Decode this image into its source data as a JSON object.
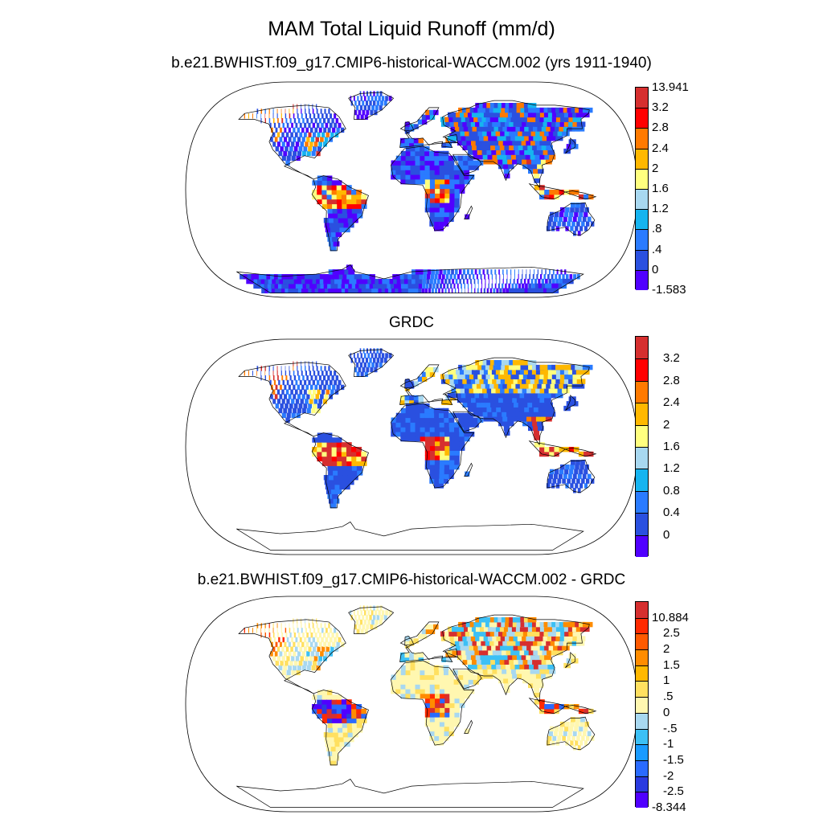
{
  "figure": {
    "title": "MAM Total Liquid Runoff (mm/d)"
  },
  "panels": [
    {
      "id": "model",
      "title": "b.e21.BWHIST.f09_g17.CMIP6-historical-WACCM.002 (yrs 1911-1940)",
      "colorbar": {
        "labels": [
          "13.941",
          "3.2",
          "2.8",
          "2.4",
          "2",
          "1.6",
          "1.2",
          ".8",
          ".4",
          "0",
          "-1.583"
        ],
        "colors": [
          "#d62f2f",
          "#ff0000",
          "#ff7a00",
          "#ffb800",
          "#ffff7f",
          "#a8d8f0",
          "#16b4f0",
          "#2a7bff",
          "#2a50e0",
          "#5000ff"
        ]
      }
    },
    {
      "id": "obs",
      "title": "GRDC",
      "colorbar": {
        "labels": [
          "3.2",
          "2.8",
          "2.4",
          "2",
          "1.6",
          "1.2",
          "0.8",
          "0.4",
          "0"
        ],
        "colors": [
          "#d62f2f",
          "#ff0000",
          "#ff7a00",
          "#ffb800",
          "#ffff7f",
          "#a8d8f0",
          "#16b4f0",
          "#2a7bff",
          "#2a50e0",
          "#5000ff"
        ]
      }
    },
    {
      "id": "diff",
      "title": "b.e21.BWHIST.f09_g17.CMIP6-historical-WACCM.002 - GRDC",
      "colorbar": {
        "labels": [
          "10.884",
          "2.5",
          "2",
          "1.5",
          "1",
          ".5",
          "0",
          "-.5",
          "-1",
          "-1.5",
          "-2",
          "-2.5",
          "-8.344"
        ],
        "colors": [
          "#d62f2f",
          "#ff2a00",
          "#ff5a00",
          "#ff8c00",
          "#ffb800",
          "#ffe060",
          "#fff7b0",
          "#a8d8f0",
          "#3cc0f5",
          "#1a9bff",
          "#2a6bff",
          "#2a3ae0",
          "#5000ff"
        ]
      }
    }
  ]
}
